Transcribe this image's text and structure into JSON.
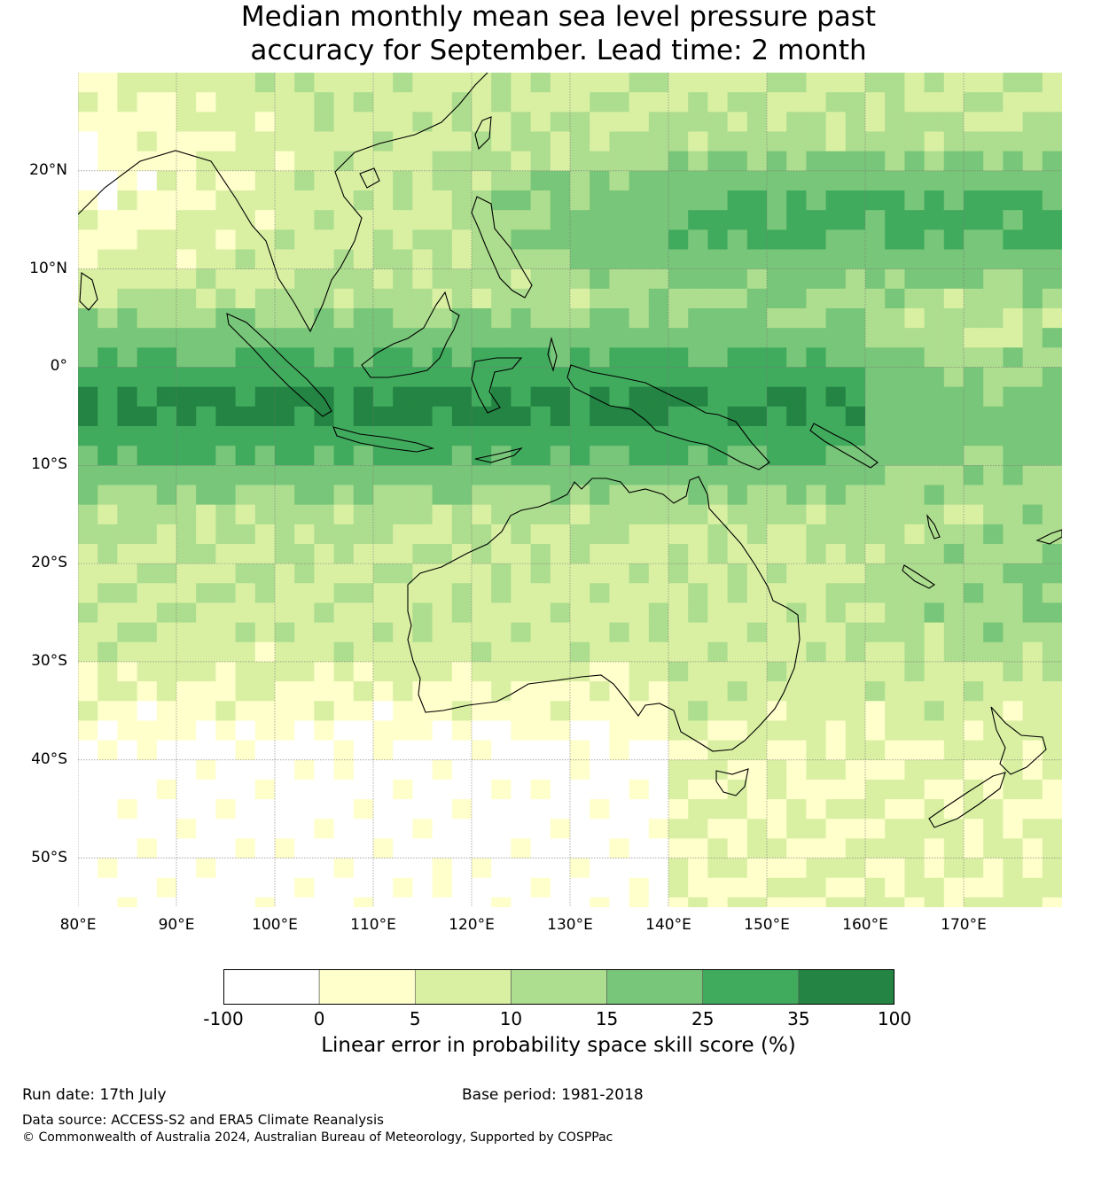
{
  "title": {
    "line1": "Median monthly mean sea level pressure past",
    "line2": "accuracy for September. Lead time: 2 month"
  },
  "map": {
    "lon_range": [
      80,
      180
    ],
    "lat_range": [
      -55,
      30
    ],
    "lon_ticks": [
      "80°E",
      "90°E",
      "100°E",
      "110°E",
      "120°E",
      "130°E",
      "140°E",
      "150°E",
      "160°E",
      "170°E"
    ],
    "lat_ticks": [
      "20°N",
      "10°N",
      "0°",
      "10°S",
      "20°S",
      "30°S",
      "40°S",
      "50°S"
    ],
    "grid": true,
    "coastline_color": "#000000"
  },
  "colorbar": {
    "bounds": [
      "-100",
      "0",
      "5",
      "10",
      "15",
      "25",
      "35",
      "100"
    ],
    "colors": [
      "#ffffff",
      "#ffffcc",
      "#d9f0a3",
      "#addd8e",
      "#78c679",
      "#41ab5d",
      "#238443"
    ],
    "label": "Linear error in probability space skill score (%)"
  },
  "footer": {
    "run_date": "Run date: 17th July",
    "base_period": "Base period: 1981-2018",
    "data_source": "Data source: ACCESS-S2 and ERA5 Climate Reanalysis",
    "copyright": "© Commonwealth of Australia 2024, Australian Bureau of Meteorology, Supported by COSPPac"
  }
}
